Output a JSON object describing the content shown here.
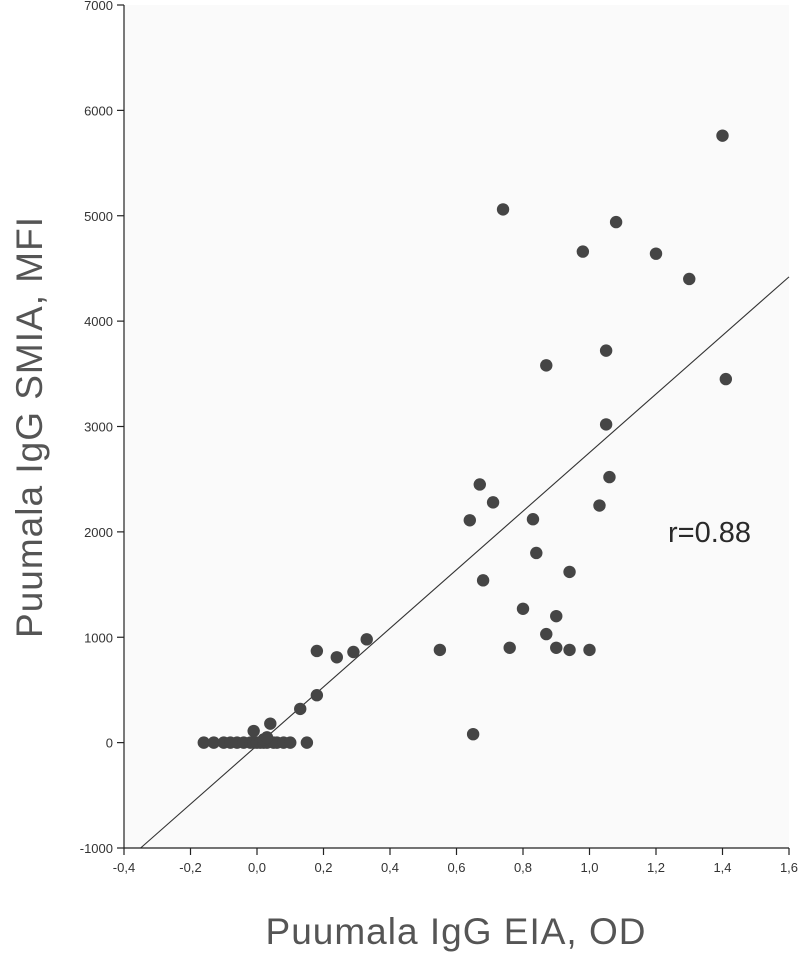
{
  "chart_data": {
    "type": "scatter",
    "title": "",
    "xlabel": "Puumala IgG EIA, OD",
    "ylabel": "Puumala IgG SMIA, MFI",
    "xlim": [
      -0.4,
      1.6
    ],
    "ylim": [
      -1000,
      7000
    ],
    "x_ticks": [
      -0.4,
      -0.2,
      0.0,
      0.2,
      0.4,
      0.6,
      0.8,
      1.0,
      1.2,
      1.4,
      1.6
    ],
    "x_tick_labels": [
      "-0,4",
      "-0,2",
      "0,0",
      "0,2",
      "0,4",
      "0,6",
      "0,8",
      "1,0",
      "1,2",
      "1,4",
      "1,6"
    ],
    "y_ticks": [
      -1000,
      0,
      1000,
      2000,
      3000,
      4000,
      5000,
      6000,
      7000
    ],
    "y_tick_labels": [
      "-1000",
      "0",
      "1000",
      "2000",
      "3000",
      "4000",
      "5000",
      "6000",
      "7000"
    ],
    "grid": false,
    "marker_color": "#454545",
    "annotation": "r=0.88",
    "regression_line": {
      "x": [
        -0.35,
        1.6
      ],
      "y": [
        -1000,
        4420
      ]
    },
    "points": [
      [
        -0.16,
        0
      ],
      [
        -0.13,
        0
      ],
      [
        -0.1,
        0
      ],
      [
        -0.08,
        0
      ],
      [
        -0.06,
        0
      ],
      [
        -0.04,
        0
      ],
      [
        -0.02,
        0
      ],
      [
        -0.01,
        0
      ],
      [
        0.0,
        0
      ],
      [
        0.01,
        0
      ],
      [
        0.02,
        0
      ],
      [
        0.03,
        0
      ],
      [
        0.05,
        0
      ],
      [
        0.06,
        0
      ],
      [
        0.08,
        0
      ],
      [
        0.1,
        0
      ],
      [
        0.15,
        0
      ],
      [
        -0.01,
        110
      ],
      [
        0.02,
        30
      ],
      [
        0.03,
        50
      ],
      [
        0.04,
        180
      ],
      [
        0.13,
        320
      ],
      [
        0.18,
        450
      ],
      [
        0.18,
        870
      ],
      [
        0.24,
        810
      ],
      [
        0.29,
        860
      ],
      [
        0.33,
        980
      ],
      [
        0.55,
        880
      ],
      [
        0.64,
        2110
      ],
      [
        0.65,
        80
      ],
      [
        0.67,
        2450
      ],
      [
        0.68,
        1540
      ],
      [
        0.71,
        2280
      ],
      [
        0.74,
        5060
      ],
      [
        0.76,
        900
      ],
      [
        0.8,
        1270
      ],
      [
        0.83,
        2120
      ],
      [
        0.84,
        1800
      ],
      [
        0.87,
        3580
      ],
      [
        0.87,
        1030
      ],
      [
        0.9,
        1200
      ],
      [
        0.9,
        900
      ],
      [
        0.94,
        880
      ],
      [
        0.94,
        1620
      ],
      [
        0.98,
        4660
      ],
      [
        1.0,
        880
      ],
      [
        1.03,
        2250
      ],
      [
        1.05,
        3020
      ],
      [
        1.05,
        3720
      ],
      [
        1.06,
        2520
      ],
      [
        1.08,
        4940
      ],
      [
        1.2,
        4640
      ],
      [
        1.3,
        4400
      ],
      [
        1.4,
        5760
      ],
      [
        1.41,
        3450
      ]
    ]
  }
}
